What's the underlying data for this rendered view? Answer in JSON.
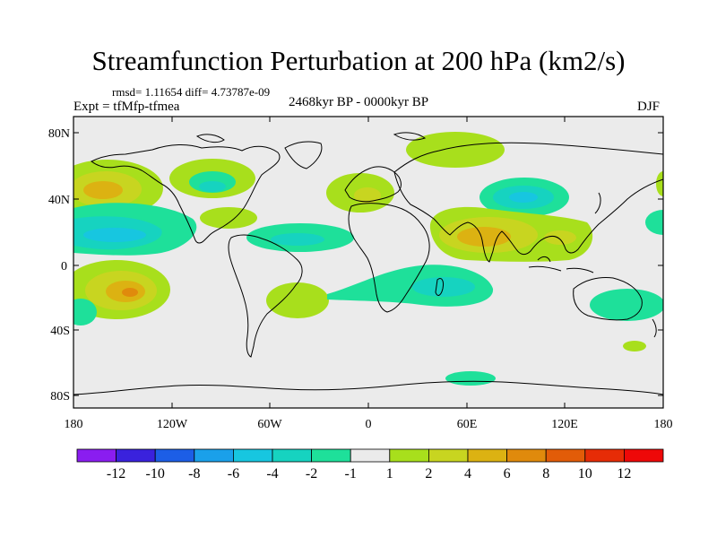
{
  "title": "Streamfunction Perturbation at 200 hPa (km2/s)",
  "stats": "rmsd= 1.11654  diff= 4.73787e-09",
  "expt": "Expt = tfMfp-tfmea",
  "period": "2468kyr BP - 0000kyr BP",
  "season": "DJF",
  "lat_labels": [
    "80N",
    "40N",
    "0",
    "40S",
    "80S"
  ],
  "lon_labels": [
    "180",
    "120W",
    "60W",
    "0",
    "60E",
    "120E",
    "180"
  ],
  "colorbar": {
    "labels": [
      "-12",
      "-10",
      "-8",
      "-6",
      "-4",
      "-2",
      "-1",
      "1",
      "2",
      "4",
      "6",
      "8",
      "10",
      "12"
    ],
    "colors": [
      "#8a1df0",
      "#3a22dd",
      "#1c5ee6",
      "#1aa0ea",
      "#17c6e0",
      "#16d3c0",
      "#1ee09a",
      "#ebebeb",
      "#a8df1c",
      "#c8d520",
      "#dcb212",
      "#e08a0c",
      "#e25c08",
      "#e62c06",
      "#ee0808"
    ]
  },
  "colors": {
    "ocean": "#ebebeb",
    "pos1": "#a8df1c",
    "pos2": "#c8d520",
    "pos3": "#dcb212",
    "pos4": "#e08a0c",
    "neg1": "#1ee09a",
    "neg2": "#16d3c0",
    "neg3": "#17c6e0"
  }
}
